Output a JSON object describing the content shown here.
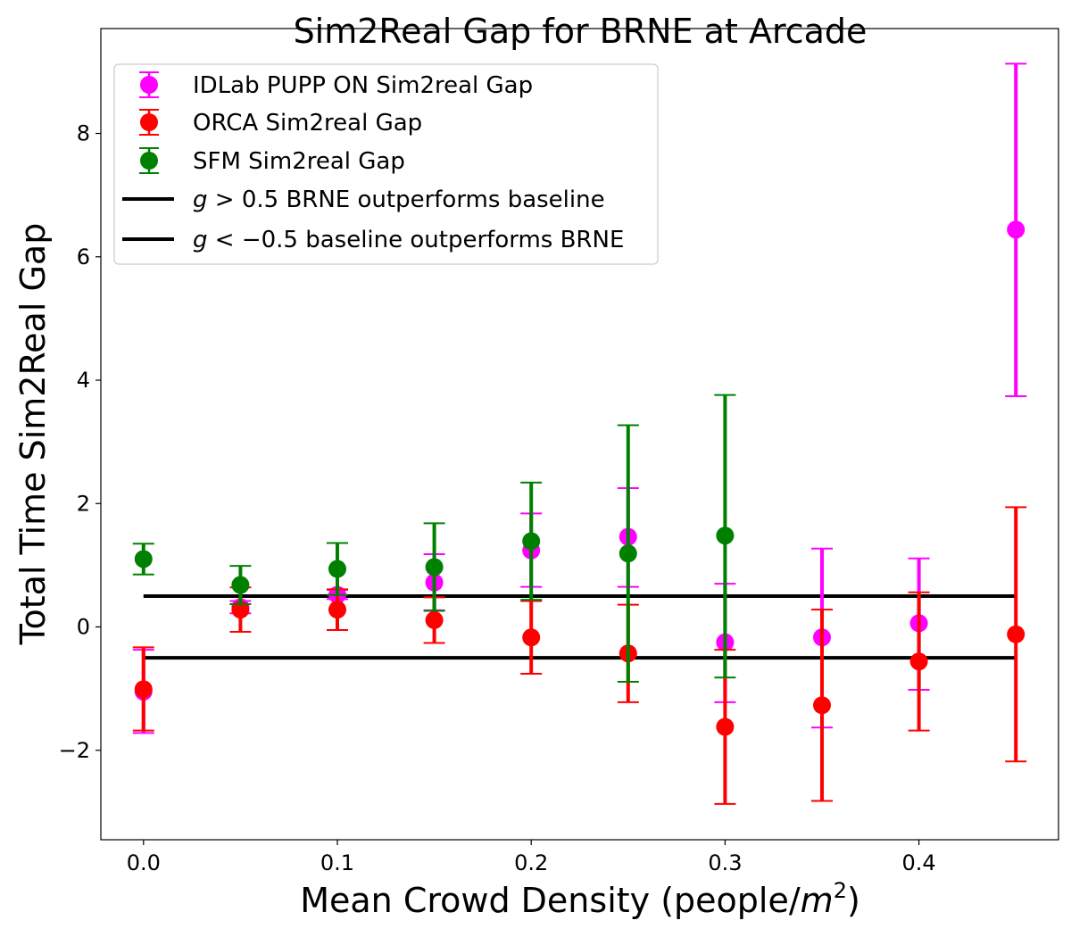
{
  "chart_data": {
    "type": "scatter",
    "title": "Sim2Real Gap for BRNE at Arcade",
    "xlabel": "Mean Crowd Density (people/",
    "xlabel_math": "m",
    "xlabel_sup": "2",
    "xlabel_close": ")",
    "ylabel": "Total Time Sim2Real Gap",
    "xlim": [
      -0.022,
      0.472
    ],
    "ylim": [
      -3.45,
      9.7
    ],
    "x_ticks": [
      0.0,
      0.1,
      0.2,
      0.3,
      0.4
    ],
    "x_tick_labels": [
      "0.0",
      "0.1",
      "0.2",
      "0.3",
      "0.4"
    ],
    "y_ticks": [
      -2,
      0,
      2,
      4,
      6,
      8
    ],
    "y_tick_labels": [
      "−2",
      "0",
      "2",
      "4",
      "6",
      "8"
    ],
    "grid": false,
    "legend_position": "top-left",
    "series": [
      {
        "name": "IDLab PUPP ON Sim2real Gap",
        "color": "#ff00ff",
        "x": [
          0.0,
          0.05,
          0.1,
          0.15,
          0.2,
          0.25,
          0.3,
          0.35,
          0.4,
          0.45
        ],
        "y": [
          -1.05,
          0.32,
          0.52,
          0.72,
          1.24,
          1.46,
          -0.25,
          -0.17,
          0.06,
          6.44
        ],
        "err_low": [
          -1.72,
          0.22,
          0.45,
          0.27,
          0.65,
          0.65,
          -1.22,
          -1.63,
          -1.02,
          3.74
        ],
        "err_high": [
          -0.37,
          0.42,
          0.6,
          1.18,
          1.84,
          2.25,
          0.7,
          1.27,
          1.11,
          9.13
        ]
      },
      {
        "name": "ORCA Sim2real Gap",
        "color": "#ff0000",
        "x": [
          0.0,
          0.05,
          0.1,
          0.15,
          0.2,
          0.25,
          0.3,
          0.35,
          0.4,
          0.45
        ],
        "y": [
          -1.01,
          0.28,
          0.28,
          0.11,
          -0.17,
          -0.43,
          -1.62,
          -1.27,
          -0.56,
          -0.12
        ],
        "err_low": [
          -1.68,
          -0.08,
          -0.05,
          -0.26,
          -0.76,
          -1.22,
          -2.87,
          -2.82,
          -1.68,
          -2.18
        ],
        "err_high": [
          -0.33,
          0.64,
          0.61,
          0.48,
          0.42,
          0.36,
          -0.37,
          0.28,
          0.56,
          1.94
        ]
      },
      {
        "name": "SFM Sim2real Gap",
        "color": "#008000",
        "x": [
          0.0,
          0.05,
          0.1,
          0.15,
          0.2,
          0.25,
          0.3
        ],
        "y": [
          1.1,
          0.68,
          0.94,
          0.97,
          1.39,
          1.19,
          1.48
        ],
        "err_low": [
          0.85,
          0.37,
          0.52,
          0.26,
          0.44,
          -0.89,
          -0.82
        ],
        "err_high": [
          1.35,
          0.99,
          1.36,
          1.68,
          2.34,
          3.27,
          3.76
        ]
      }
    ],
    "hlines": [
      {
        "label_math": "g",
        "label_rest": " > 0.5 BRNE outperforms baseline",
        "y": 0.5,
        "x_start": 0.0,
        "x_end": 0.45,
        "color": "#000000"
      },
      {
        "label_math": "g",
        "label_rest": " < −0.5 baseline outperforms BRNE",
        "y": -0.5,
        "x_start": 0.0,
        "x_end": 0.45,
        "color": "#000000"
      }
    ]
  }
}
